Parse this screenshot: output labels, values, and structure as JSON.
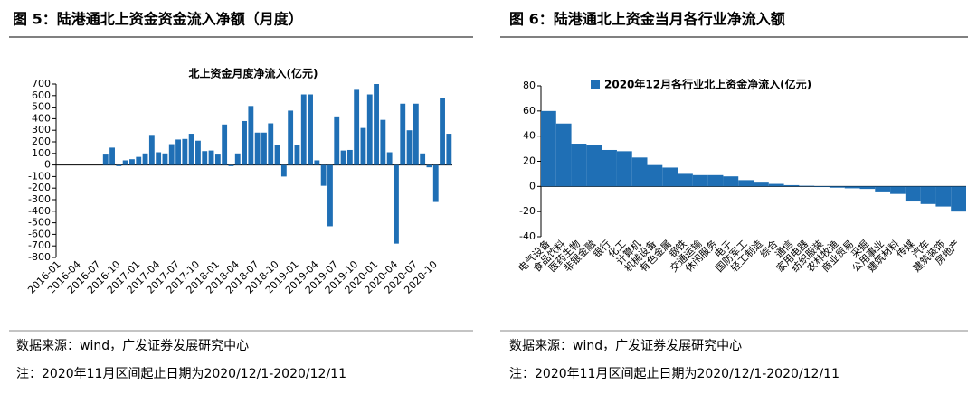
{
  "chart_data": [
    {
      "type": "bar",
      "figure_title": "图 5：陆港通北上资金资金流入净额（月度）",
      "title": "北上资金月度净流入(亿元)",
      "categories": [
        "2016-01",
        null,
        null,
        "2016-04",
        null,
        null,
        "2016-07",
        null,
        null,
        "2016-10",
        null,
        null,
        "2017-01",
        null,
        null,
        "2017-04",
        null,
        null,
        "2017-07",
        null,
        null,
        "2017-10",
        null,
        null,
        "2018-01",
        null,
        null,
        "2018-04",
        null,
        null,
        "2018-07",
        null,
        null,
        "2018-10",
        null,
        null,
        "2019-01",
        null,
        null,
        "2019-04",
        null,
        null,
        "2019-07",
        null,
        null,
        "2019-10",
        null,
        null,
        "2020-01",
        null,
        null,
        "2020-04",
        null,
        null,
        "2020-07",
        null,
        null,
        "2020-10",
        null,
        null
      ],
      "values": [
        0,
        0,
        0,
        0,
        0,
        0,
        0,
        90,
        150,
        -10,
        40,
        50,
        70,
        100,
        260,
        110,
        100,
        180,
        220,
        225,
        270,
        210,
        120,
        125,
        90,
        350,
        -10,
        100,
        380,
        510,
        280,
        280,
        360,
        170,
        -100,
        470,
        170,
        610,
        610,
        40,
        -180,
        -530,
        420,
        125,
        130,
        650,
        320,
        610,
        700,
        390,
        110,
        -680,
        530,
        300,
        530,
        100,
        -20,
        -320,
        580,
        270
      ],
      "color": "#1f6fb5",
      "ylim": [
        -800,
        700
      ],
      "yticks": [
        -800,
        -700,
        -600,
        -500,
        -400,
        -300,
        -200,
        -100,
        0,
        100,
        200,
        300,
        400,
        500,
        600,
        700
      ],
      "source": "数据来源：wind，广发证券发展研究中心",
      "note": "注：2020年11月区间起止日期为2020/12/1-2020/12/11"
    },
    {
      "type": "bar",
      "figure_title": "图 6：陆港通北上资金当月各行业净流入额",
      "legend": "2020年12月各行业北上资金净流入(亿元)",
      "categories": [
        "电气设备",
        "食品饮料",
        "医药生物",
        "非银金融",
        "银行",
        "化工",
        "计算机",
        "机械设备",
        "有色金属",
        "钢铁",
        "交通运输",
        "休闲服务",
        "电子",
        "国防军工",
        "轻工制造",
        "综合",
        "通信",
        "家用电器",
        "纺织服装",
        "农林牧渔",
        "商业贸易",
        "采掘",
        "公用事业",
        "建筑材料",
        "传媒",
        "汽车",
        "建筑装饰",
        "房地产"
      ],
      "values": [
        60,
        50,
        34,
        33,
        29,
        28,
        23,
        17,
        15,
        10,
        9,
        9,
        8,
        5,
        3,
        2,
        1,
        0.5,
        -0.5,
        -1,
        -1.5,
        -2,
        -4,
        -6,
        -12,
        -14,
        -16,
        -20
      ],
      "color": "#1f6fb5",
      "ylim": [
        -40,
        80
      ],
      "yticks": [
        -40,
        -20,
        0,
        20,
        40,
        60,
        80
      ],
      "source": "数据来源：wind，广发证券发展研究中心",
      "note": "注：2020年11月区间起止日期为2020/12/1-2020/12/11"
    }
  ]
}
